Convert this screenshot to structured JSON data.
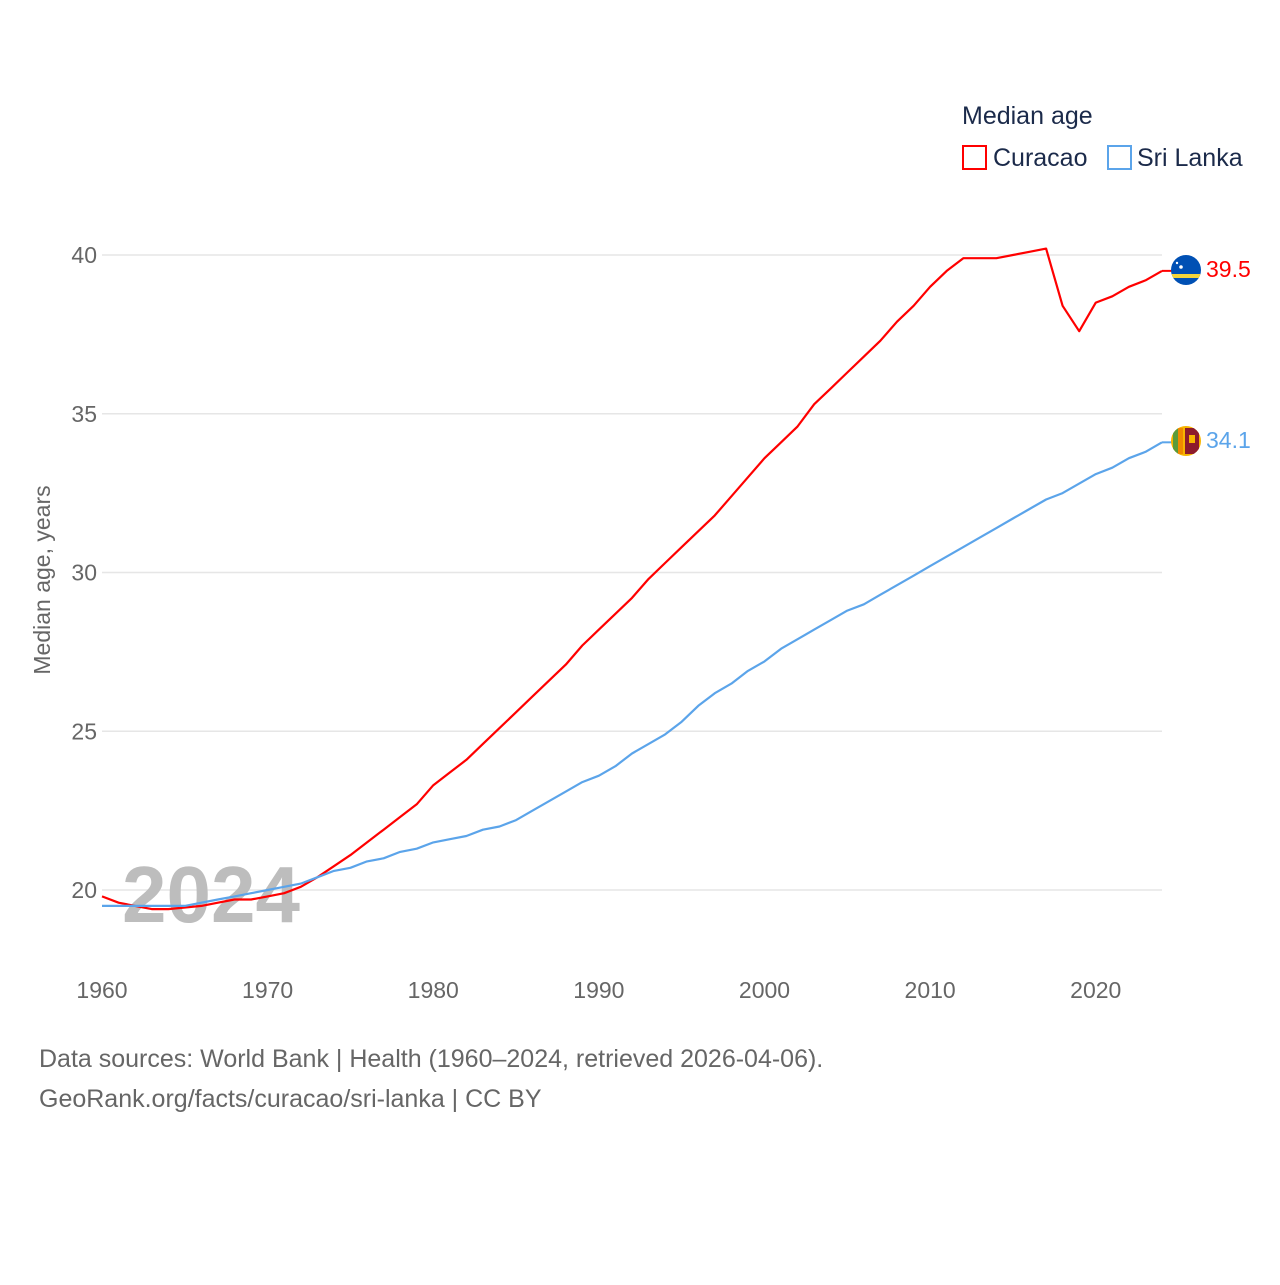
{
  "chart_data": {
    "type": "line",
    "title": "Median age",
    "xlabel": "",
    "ylabel": "Median age, years",
    "xlim": [
      1960,
      2024
    ],
    "ylim": [
      20,
      40
    ],
    "x_ticks": [
      "1960",
      "1970",
      "1980",
      "1990",
      "2000",
      "2010",
      "2020"
    ],
    "y_ticks": [
      "20",
      "25",
      "30",
      "35",
      "40"
    ],
    "grid": true,
    "legend_position": "top-right",
    "year_watermark": "2024",
    "x": [
      1960,
      1961,
      1962,
      1963,
      1964,
      1965,
      1966,
      1967,
      1968,
      1969,
      1970,
      1971,
      1972,
      1973,
      1974,
      1975,
      1976,
      1977,
      1978,
      1979,
      1980,
      1981,
      1982,
      1983,
      1984,
      1985,
      1986,
      1987,
      1988,
      1989,
      1990,
      1991,
      1992,
      1993,
      1994,
      1995,
      1996,
      1997,
      1998,
      1999,
      2000,
      2001,
      2002,
      2003,
      2004,
      2005,
      2006,
      2007,
      2008,
      2009,
      2010,
      2011,
      2012,
      2013,
      2014,
      2015,
      2016,
      2017,
      2018,
      2019,
      2020,
      2021,
      2022,
      2023,
      2024
    ],
    "series": [
      {
        "name": "Curacao",
        "color": "#ff0000",
        "end_label": "39.5",
        "values": [
          19.8,
          19.6,
          19.5,
          19.4,
          19.4,
          19.45,
          19.5,
          19.6,
          19.7,
          19.7,
          19.8,
          19.9,
          20.1,
          20.4,
          20.75,
          21.1,
          21.5,
          21.9,
          22.3,
          22.7,
          23.3,
          23.7,
          24.1,
          24.6,
          25.1,
          25.6,
          26.1,
          26.6,
          27.1,
          27.7,
          28.2,
          28.7,
          29.2,
          29.8,
          30.3,
          30.8,
          31.3,
          31.8,
          32.4,
          33.0,
          33.6,
          34.1,
          34.6,
          35.3,
          35.8,
          36.3,
          36.8,
          37.3,
          37.9,
          38.4,
          39.0,
          39.5,
          39.9,
          39.9,
          39.9,
          40.0,
          40.1,
          40.2,
          38.4,
          37.6,
          38.5,
          38.7,
          39.0,
          39.2,
          39.5
        ]
      },
      {
        "name": "Sri Lanka",
        "color": "#5ba4ea",
        "end_label": "34.1",
        "values": [
          19.5,
          19.5,
          19.5,
          19.5,
          19.5,
          19.5,
          19.6,
          19.7,
          19.8,
          19.9,
          20.0,
          20.1,
          20.2,
          20.4,
          20.6,
          20.7,
          20.9,
          21.0,
          21.2,
          21.3,
          21.5,
          21.6,
          21.7,
          21.9,
          22.0,
          22.2,
          22.5,
          22.8,
          23.1,
          23.4,
          23.6,
          23.9,
          24.3,
          24.6,
          24.9,
          25.3,
          25.8,
          26.2,
          26.5,
          26.9,
          27.2,
          27.6,
          27.9,
          28.2,
          28.5,
          28.8,
          29.0,
          29.3,
          29.6,
          29.9,
          30.2,
          30.5,
          30.8,
          31.1,
          31.4,
          31.7,
          32.0,
          32.3,
          32.5,
          32.8,
          33.1,
          33.3,
          33.6,
          33.8,
          34.1
        ]
      }
    ]
  },
  "footer": {
    "sources": "Data sources: World Bank | Health (1960–2024, retrieved 2026-04-06).",
    "link": "GeoRank.org/facts/curacao/sri-lanka | CC BY"
  }
}
